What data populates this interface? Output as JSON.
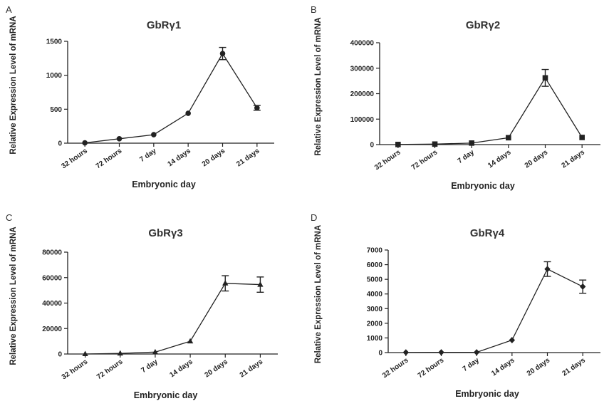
{
  "chart_data": [
    {
      "panel": "A",
      "type": "line",
      "title": "GbRγ1",
      "xlabel": "Embryonic day",
      "ylabel": "Relative Expression Level of mRNA",
      "categories": [
        "32 hours",
        "72 hours",
        "7 day",
        "14 days",
        "20 days",
        "21 days"
      ],
      "values": [
        5,
        65,
        125,
        440,
        1320,
        520
      ],
      "errors": [
        0,
        0,
        0,
        0,
        90,
        35
      ],
      "marker": "circle",
      "ylim": [
        0,
        1500
      ],
      "yticks": [
        0,
        500,
        1000,
        1500
      ]
    },
    {
      "panel": "B",
      "type": "line",
      "title": "GbRγ2",
      "xlabel": "Embryonic day",
      "ylabel": "Relative Expression Level of mRNA",
      "categories": [
        "32 hours",
        "72 hours",
        "7 day",
        "14 days",
        "20 days",
        "21 days"
      ],
      "values": [
        500,
        2000,
        6000,
        27000,
        262000,
        28000
      ],
      "errors": [
        0,
        0,
        0,
        0,
        33000,
        0
      ],
      "marker": "square",
      "ylim": [
        0,
        400000
      ],
      "yticks": [
        0,
        100000,
        200000,
        300000,
        400000
      ]
    },
    {
      "panel": "C",
      "type": "line",
      "title": "GbRγ3",
      "xlabel": "Embryonic day",
      "ylabel": "Relative Expression Level of mRNA",
      "categories": [
        "32 hours",
        "72 hours",
        "7 day",
        "14 days",
        "20 days",
        "21 days"
      ],
      "values": [
        0,
        500,
        1500,
        10000,
        55500,
        54500
      ],
      "errors": [
        0,
        0,
        0,
        0,
        6000,
        6000
      ],
      "marker": "triangle",
      "ylim": [
        0,
        80000
      ],
      "yticks": [
        0,
        20000,
        40000,
        60000,
        80000
      ]
    },
    {
      "panel": "D",
      "type": "line",
      "title": "GbRγ4",
      "xlabel": "Embryonic day",
      "ylabel": "Relative Expression Level of mRNA",
      "categories": [
        "32 hours",
        "72 hours",
        "7 day",
        "14 days",
        "20 days",
        "21 days"
      ],
      "values": [
        10,
        20,
        20,
        850,
        5700,
        4500
      ],
      "errors": [
        0,
        0,
        0,
        0,
        500,
        450
      ],
      "marker": "diamond",
      "ylim": [
        0,
        7000
      ],
      "yticks": [
        0,
        1000,
        2000,
        3000,
        4000,
        5000,
        6000,
        7000
      ]
    }
  ]
}
